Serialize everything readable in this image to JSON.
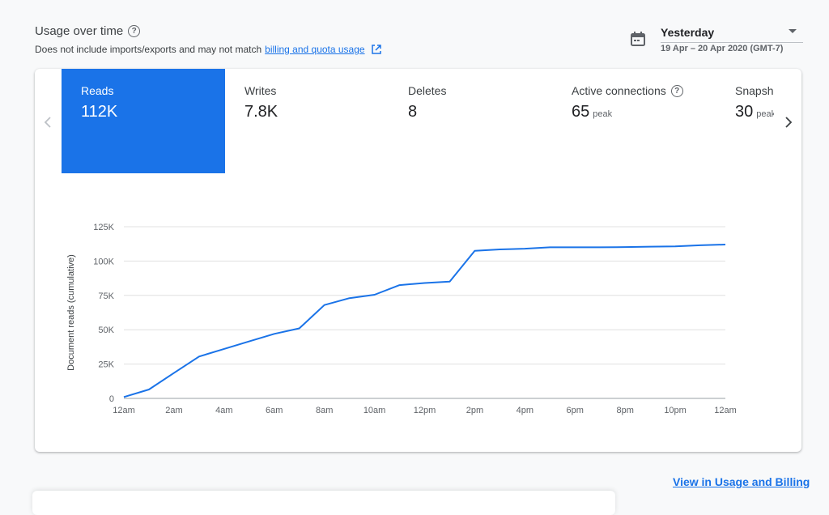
{
  "header": {
    "title": "Usage over time",
    "subtitle": "Does not include imports/exports and may not match",
    "link_text": "billing and quota usage"
  },
  "date_picker": {
    "label": "Yesterday",
    "range": "19 Apr – 20 Apr 2020 (GMT-7)"
  },
  "tabs": [
    {
      "label": "Reads",
      "value": "112K",
      "active": true
    },
    {
      "label": "Writes",
      "value": "7.8K"
    },
    {
      "label": "Deletes",
      "value": "8"
    },
    {
      "label": "Active connections",
      "value": "65",
      "suffix": "peak",
      "help": true
    },
    {
      "label": "Snapshot listeners",
      "value": "30",
      "suffix": "peak"
    }
  ],
  "chart_data": {
    "type": "line",
    "ylabel": "Document reads (cumulative)",
    "ylim": [
      0,
      125000
    ],
    "yticks": [
      0,
      25000,
      50000,
      75000,
      100000,
      125000
    ],
    "ytick_labels": [
      "0",
      "25K",
      "50K",
      "75K",
      "100K",
      "125K"
    ],
    "xtick_labels": [
      "12am",
      "2am",
      "4am",
      "6am",
      "8am",
      "10am",
      "12pm",
      "2pm",
      "4pm",
      "6pm",
      "8pm",
      "10pm",
      "12am"
    ],
    "grid": true,
    "color": "#1a73e8",
    "series": [
      {
        "hours": [
          0,
          1,
          2,
          3,
          4,
          5,
          6,
          7,
          8,
          9,
          10,
          11,
          12,
          13,
          14,
          15,
          16,
          17,
          18,
          19,
          20,
          21,
          22,
          23,
          24
        ],
        "values": [
          1000,
          6500,
          18500,
          30500,
          36000,
          41500,
          47000,
          51000,
          68000,
          73000,
          75500,
          82500,
          84000,
          85000,
          107500,
          108500,
          109000,
          110000,
          110000,
          110000,
          110200,
          110500,
          110700,
          111500,
          112000
        ]
      }
    ]
  },
  "footer": {
    "link": "View in Usage and Billing"
  }
}
